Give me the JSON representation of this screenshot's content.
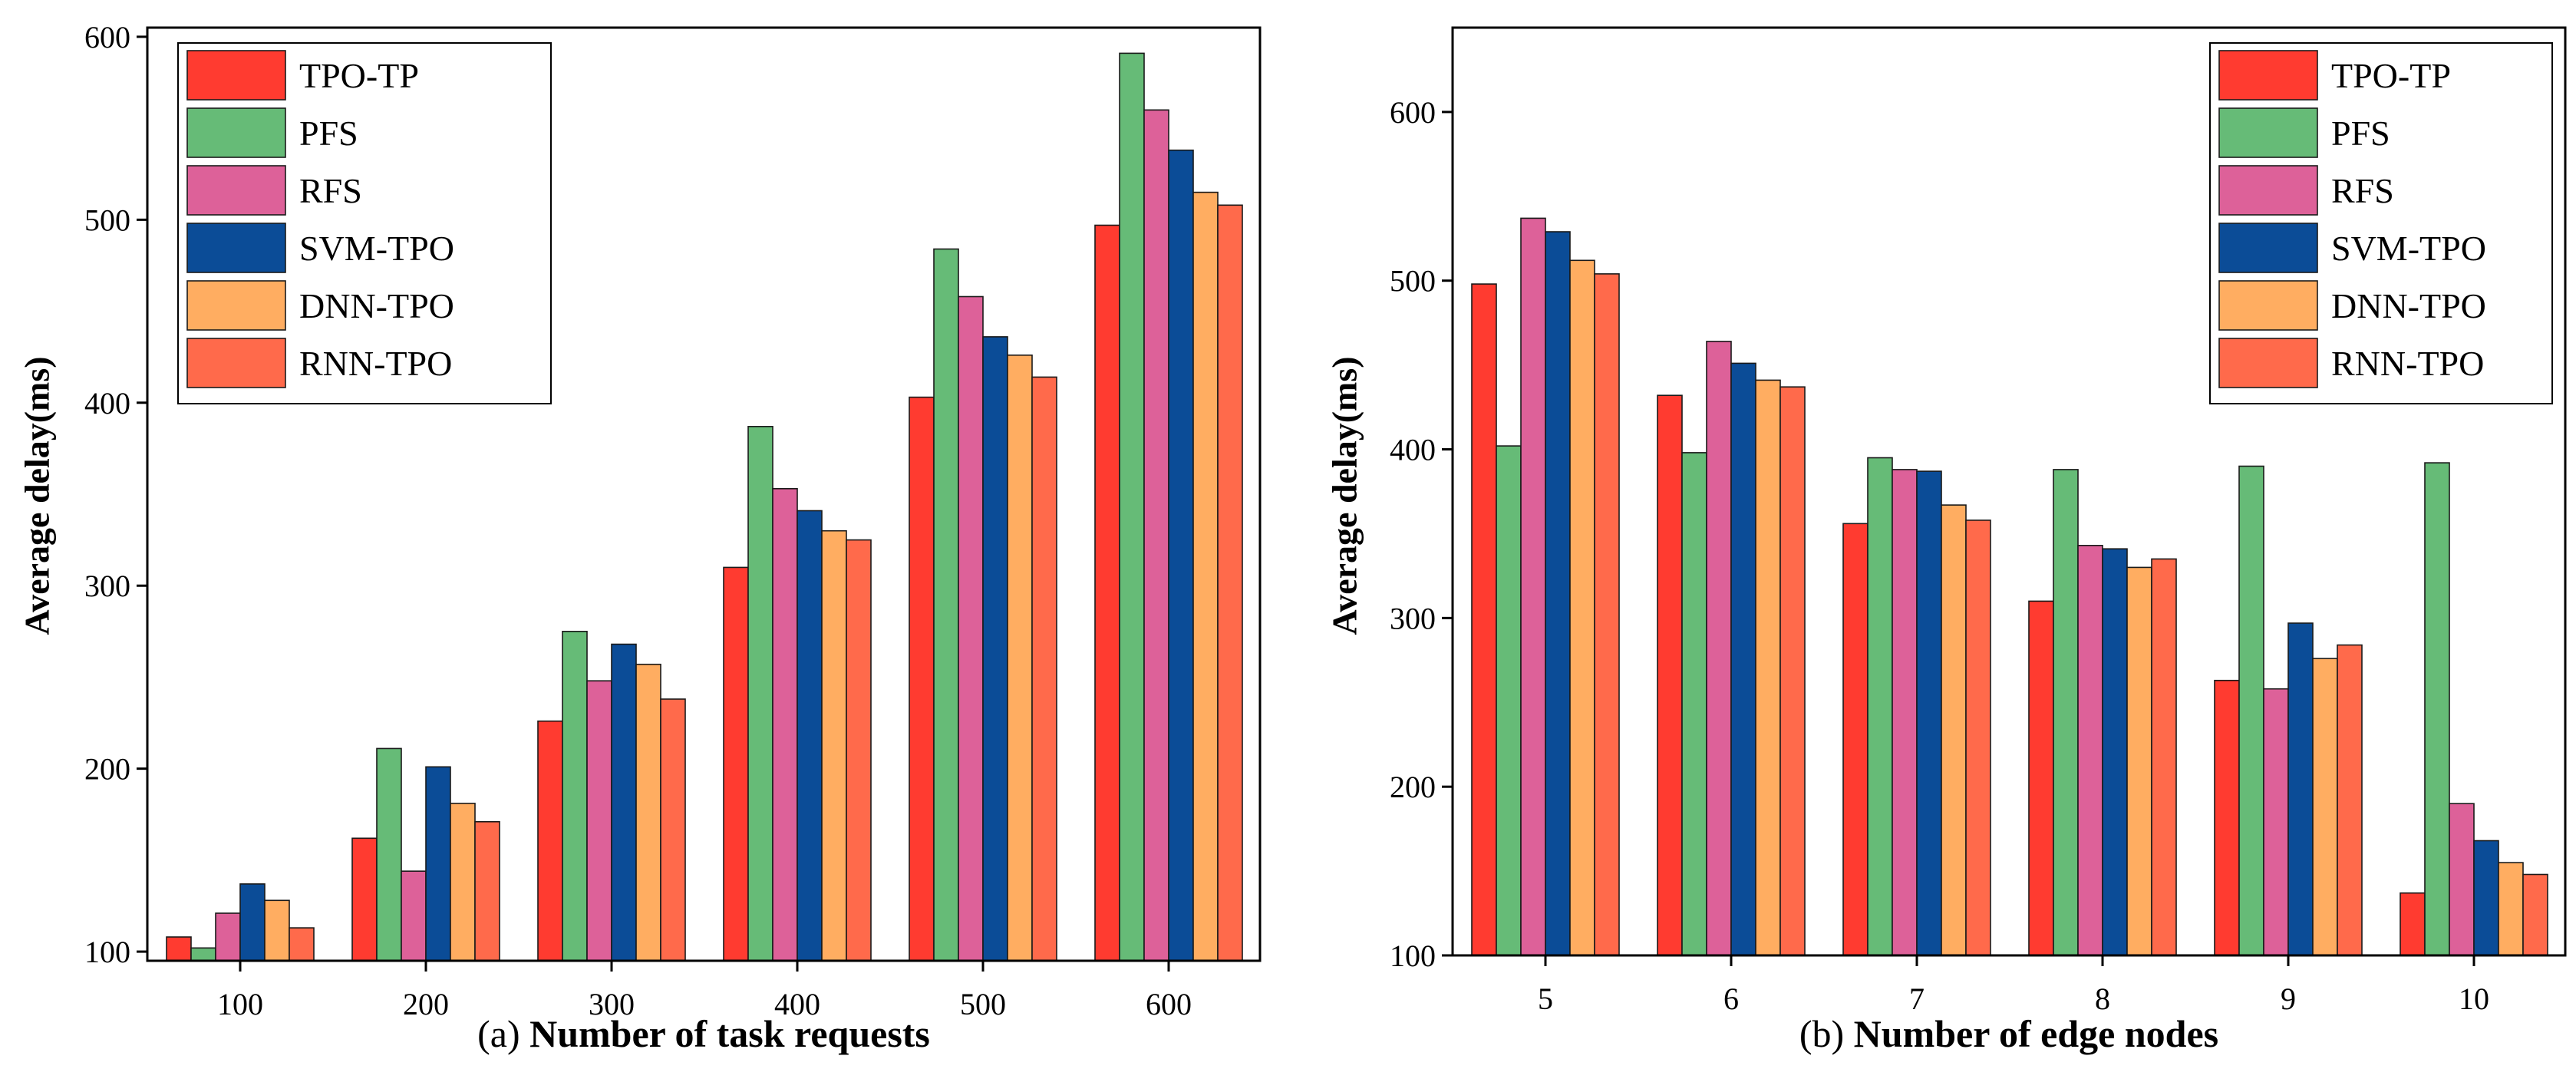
{
  "series_styles": [
    {
      "name": "TPO-TP",
      "color": "#FF3B30"
    },
    {
      "name": "PFS",
      "color": "#66BB77"
    },
    {
      "name": "RFS",
      "color": "#DD6199"
    },
    {
      "name": "SVM-TPO",
      "color": "#0B4C97"
    },
    {
      "name": "DNN-TPO",
      "color": "#FFAD61"
    },
    {
      "name": "RNN-TPO",
      "color": "#FF6A4B"
    }
  ],
  "chart_data": [
    {
      "type": "bar",
      "caption_prefix": "(a)",
      "caption_text": "Number of  task requests",
      "xlabel": "Number of task requests",
      "ylabel": "Average delay(ms)",
      "categories": [
        "100",
        "200",
        "300",
        "400",
        "500",
        "600"
      ],
      "ylim": [
        95,
        605
      ],
      "yticks": [
        100,
        200,
        300,
        400,
        500,
        600
      ],
      "legend_position": "top-left",
      "series": [
        {
          "name": "TPO-TP",
          "values": [
            108,
            162,
            226,
            310,
            403,
            497
          ]
        },
        {
          "name": "PFS",
          "values": [
            102,
            211,
            275,
            387,
            484,
            591
          ]
        },
        {
          "name": "RFS",
          "values": [
            121,
            144,
            248,
            353,
            458,
            560
          ]
        },
        {
          "name": "SVM-TPO",
          "values": [
            137,
            201,
            268,
            341,
            436,
            538
          ]
        },
        {
          "name": "DNN-TPO",
          "values": [
            128,
            181,
            257,
            330,
            426,
            515
          ]
        },
        {
          "name": "RNN-TPO",
          "values": [
            113,
            171,
            238,
            325,
            414,
            508
          ]
        }
      ]
    },
    {
      "type": "bar",
      "caption_prefix": "(b)",
      "caption_text": "Number of edge nodes",
      "xlabel": "Number of edge nodes",
      "ylabel": "Average delay(ms)",
      "categories": [
        "5",
        "6",
        "7",
        "8",
        "9",
        "10"
      ],
      "ylim": [
        100,
        650
      ],
      "yticks": [
        100,
        200,
        300,
        400,
        500,
        600
      ],
      "legend_position": "top-right",
      "series": [
        {
          "name": "TPO-TP",
          "values": [
            498,
            432,
            356,
            310,
            263,
            137
          ]
        },
        {
          "name": "PFS",
          "values": [
            402,
            398,
            395,
            388,
            390,
            392
          ]
        },
        {
          "name": "RFS",
          "values": [
            537,
            464,
            388,
            343,
            258,
            190
          ]
        },
        {
          "name": "SVM-TPO",
          "values": [
            529,
            451,
            387,
            341,
            297,
            168
          ]
        },
        {
          "name": "DNN-TPO",
          "values": [
            512,
            441,
            367,
            330,
            276,
            155
          ]
        },
        {
          "name": "RNN-TPO",
          "values": [
            504,
            437,
            358,
            335,
            284,
            148
          ]
        }
      ]
    }
  ]
}
